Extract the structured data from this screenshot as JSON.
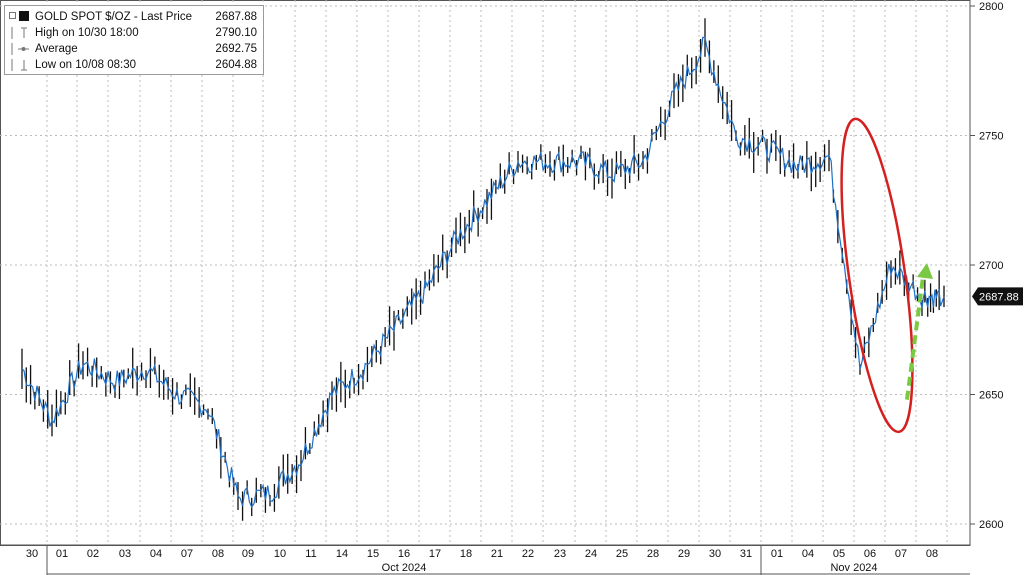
{
  "legend": {
    "series_label": "GOLD SPOT $/OZ - Last Price",
    "series_value": "2687.88",
    "high_label": "High on 10/30 18:00",
    "high_value": "2790.10",
    "avg_label": "Average",
    "avg_value": "2692.75",
    "low_label": "Low on 10/08 08:30",
    "low_value": "2604.88"
  },
  "last_price_tag": "2687.88",
  "colors": {
    "line": "#1f6fc5",
    "bars": "#111111",
    "ellipse": "#d42020",
    "arrow": "#7ac943",
    "tag_bg": "#111111",
    "grid": "#bdbdbd"
  },
  "chart_data": {
    "type": "line",
    "title": "GOLD SPOT $/OZ - Last Price",
    "xlabel": "",
    "ylabel": "",
    "ylim": [
      2600,
      2800
    ],
    "yticks": [
      "2600",
      "2650",
      "2700",
      "2750",
      "2800"
    ],
    "x_tick_labels": [
      "30",
      "01",
      "02",
      "03",
      "04",
      "07",
      "08",
      "09",
      "10",
      "11",
      "14",
      "15",
      "16",
      "17",
      "18",
      "21",
      "22",
      "23",
      "24",
      "25",
      "28",
      "29",
      "30",
      "31",
      "01",
      "04",
      "05",
      "06",
      "07",
      "08"
    ],
    "month_labels": [
      "Oct 2024",
      "Nov 2024"
    ],
    "grid": true,
    "legend_position": "top-left",
    "series": [
      {
        "name": "GOLD SPOT $/OZ - Last Price",
        "x": [
          "09/30",
          "10/01",
          "10/02",
          "10/03",
          "10/04",
          "10/07",
          "10/08",
          "10/09",
          "10/10",
          "10/11",
          "10/14",
          "10/15",
          "10/16",
          "10/17",
          "10/18",
          "10/21",
          "10/22",
          "10/23",
          "10/24",
          "10/25",
          "10/28",
          "10/29",
          "10/30",
          "10/31",
          "11/01",
          "11/04",
          "11/05",
          "11/06",
          "11/07",
          "11/08"
        ],
        "values": [
          2660,
          2640,
          2662,
          2655,
          2660,
          2650,
          2645,
          2610,
          2612,
          2625,
          2650,
          2660,
          2675,
          2690,
          2710,
          2725,
          2740,
          2740,
          2740,
          2735,
          2740,
          2765,
          2785,
          2750,
          2745,
          2738,
          2742,
          2660,
          2700,
          2687.88
        ]
      }
    ],
    "annotations": [
      {
        "kind": "ellipse",
        "label": "",
        "x_range": [
          "11/05",
          "11/06"
        ],
        "y_range": [
          2635,
          2757
        ]
      },
      {
        "kind": "arrow",
        "label": "",
        "from": [
          "11/07",
          2648
        ],
        "to": [
          "11/08",
          2700
        ]
      }
    ],
    "axis": {
      "y_position": "right"
    }
  }
}
